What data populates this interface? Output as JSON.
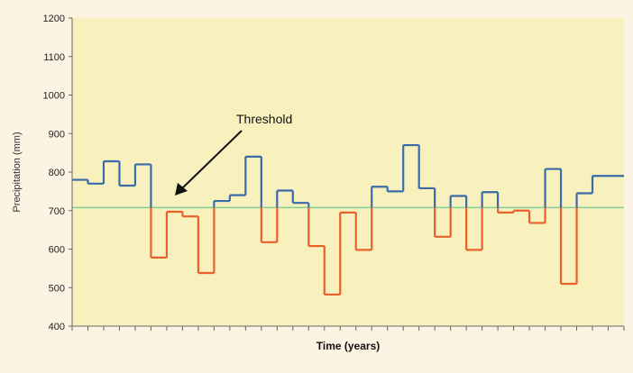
{
  "chart_data": {
    "type": "line",
    "step": true,
    "title": "",
    "xlabel": "Time (years)",
    "ylabel": "Precipitation (mm)",
    "ylim": [
      400,
      1200
    ],
    "yticks": [
      "400",
      "500",
      "600",
      "700",
      "800",
      "900",
      "1000",
      "1100",
      "1200"
    ],
    "grid": false,
    "threshold": 708,
    "annotation": "Threshold",
    "x_count": 35,
    "values": [
      780,
      770,
      828,
      765,
      820,
      578,
      697,
      685,
      538,
      725,
      740,
      840,
      618,
      752,
      720,
      608,
      482,
      695,
      598,
      762,
      750,
      870,
      758,
      632,
      738,
      598,
      748,
      695,
      700,
      668,
      808,
      510,
      745,
      790
    ],
    "colors": {
      "above": "#3a6aa8",
      "below": "#e8602a",
      "threshold": "#7fce94",
      "plot_bg": "#f8f1be",
      "frame_bg": "#fdf3e3"
    }
  }
}
